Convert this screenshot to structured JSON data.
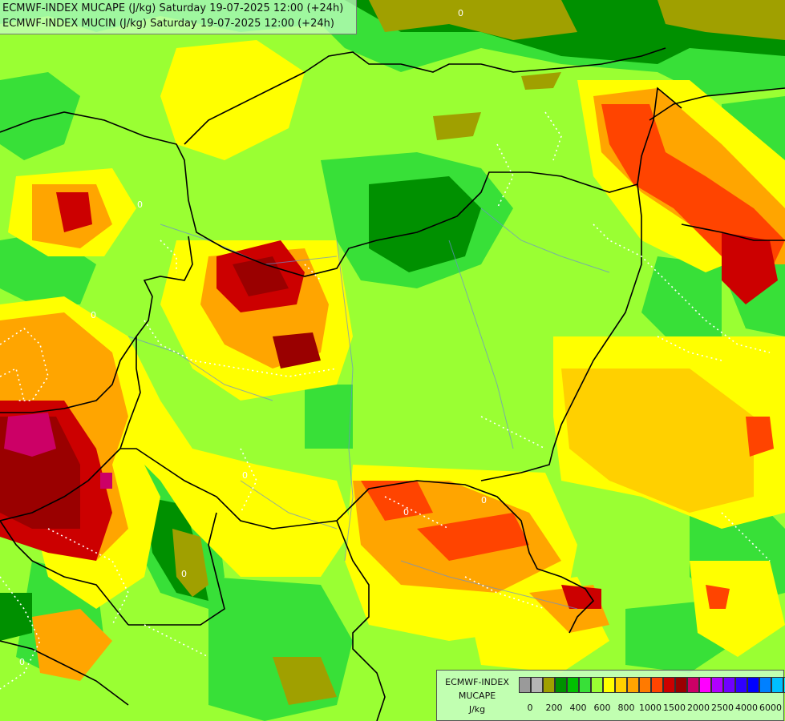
{
  "header": {
    "line1": "ECMWF-INDEX MUCAPE (J/kg) Saturday 19-07-2025 12:00 (+24h)",
    "line2": "ECMWF-INDEX MUCIN (J/kg) Saturday 19-07-2025 12:00 (+24h)"
  },
  "legend": {
    "title_line1": "ECMWF-INDEX",
    "title_line2": "MUCAPE",
    "unit": "J/kg",
    "colors": [
      "#9a9a9a",
      "#b5b5b5",
      "#a0a000",
      "#009000",
      "#00c000",
      "#38e038",
      "#9aff33",
      "#ffff00",
      "#ffd000",
      "#ffa500",
      "#ff7a00",
      "#ff4400",
      "#cc0000",
      "#9a0000",
      "#cc0066",
      "#ff00ff",
      "#b000ff",
      "#7000ff",
      "#3000ff",
      "#0000ff",
      "#0080ff",
      "#00c0ff",
      "#00ffff",
      "#ffffff"
    ],
    "ticks": [
      "0",
      "200",
      "400",
      "600",
      "800",
      "1000",
      "1500",
      "2000",
      "2500",
      "4000",
      "6000"
    ]
  },
  "map_labels": {
    "cin_zero": "0"
  }
}
